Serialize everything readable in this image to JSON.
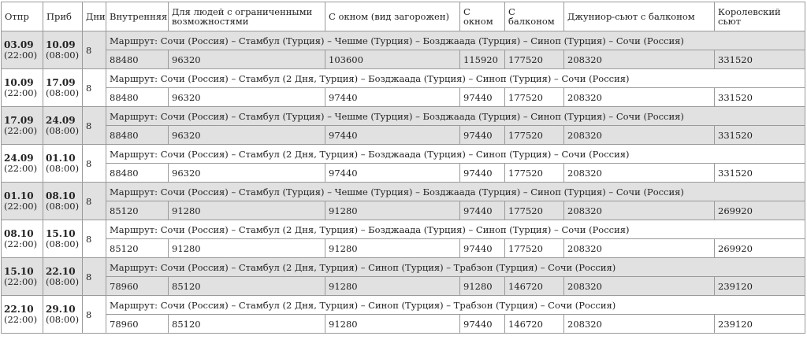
{
  "table": {
    "headers": [
      "Отпр",
      "Приб",
      "Дни",
      "Внутренняя",
      "Для людей с ограниченными возможностями",
      "С окном (вид загорожен)",
      "С окном",
      "С балконом",
      "Джуниор-сьют с балконом",
      "Королевский сьют"
    ],
    "rows": [
      {
        "dep_date": "03.09",
        "dep_time": "(22:00)",
        "arr_date": "10.09",
        "arr_time": "(08:00)",
        "days": "8",
        "route": "Маршрут: Сочи (Россия) – Стамбул (Турция) – Чешме (Турция) – Бозджаада (Турция) – Синоп (Турция) – Сочи (Россия)",
        "prices": [
          "88480",
          "96320",
          "103600",
          "115920",
          "177520",
          "208320",
          "331520"
        ]
      },
      {
        "dep_date": "10.09",
        "dep_time": "(22:00)",
        "arr_date": "17.09",
        "arr_time": "(08:00)",
        "days": "8",
        "route": "Маршрут: Сочи (Россия) – Стамбул (2 Дня, Турция) – Бозджаада (Турция) – Синоп (Турция) – Сочи (Россия)",
        "prices": [
          "88480",
          "96320",
          "97440",
          "97440",
          "177520",
          "208320",
          "331520"
        ]
      },
      {
        "dep_date": "17.09",
        "dep_time": "(22:00)",
        "arr_date": "24.09",
        "arr_time": "(08:00)",
        "days": "8",
        "route": "Маршрут: Сочи (Россия) – Стамбул (Турция) – Чешме (Турция) – Бозджаада (Турция) – Синоп (Турция) – Сочи (Россия)",
        "prices": [
          "88480",
          "96320",
          "97440",
          "97440",
          "177520",
          "208320",
          "331520"
        ]
      },
      {
        "dep_date": "24.09",
        "dep_time": "(22:00)",
        "arr_date": "01.10",
        "arr_time": "(08:00)",
        "days": "8",
        "route": "Маршрут: Сочи (Россия) – Стамбул (2 Дня, Турция) – Бозджаада (Турция) – Синоп (Турция) – Сочи (Россия)",
        "prices": [
          "88480",
          "96320",
          "97440",
          "97440",
          "177520",
          "208320",
          "331520"
        ]
      },
      {
        "dep_date": "01.10",
        "dep_time": "(22:00)",
        "arr_date": "08.10",
        "arr_time": "(08:00)",
        "days": "8",
        "route": "Маршрут: Сочи (Россия) – Стамбул (Турция) – Чешме (Турция) – Бозджаада (Турция) – Синоп (Турция) – Сочи (Россия)",
        "prices": [
          "85120",
          "91280",
          "91280",
          "97440",
          "177520",
          "208320",
          "269920"
        ]
      },
      {
        "dep_date": "08.10",
        "dep_time": "(22:00)",
        "arr_date": "15.10",
        "arr_time": "(08:00)",
        "days": "8",
        "route": "Маршрут: Сочи (Россия) – Стамбул (2 Дня, Турция) – Бозджаада (Турция) – Синоп (Турция) – Сочи (Россия)",
        "prices": [
          "85120",
          "91280",
          "91280",
          "97440",
          "177520",
          "208320",
          "269920"
        ]
      },
      {
        "dep_date": "15.10",
        "dep_time": "(22:00)",
        "arr_date": "22.10",
        "arr_time": "(08:00)",
        "days": "8",
        "route": "Маршрут: Сочи (Россия) – Стамбул (2 Дня, Турция) – Синоп (Турция) – Трабзон (Турция) – Сочи (Россия)",
        "prices": [
          "78960",
          "85120",
          "91280",
          "91280",
          "146720",
          "208320",
          "239120"
        ]
      },
      {
        "dep_date": "22.10",
        "dep_time": "(22:00)",
        "arr_date": "29.10",
        "arr_time": "(08:00)",
        "days": "8",
        "route": "Маршрут: Сочи (Россия) – Стамбул (2 Дня, Турция) – Синоп (Турция) – Трабзон (Турция) – Сочи (Россия)",
        "prices": [
          "78960",
          "85120",
          "91280",
          "97440",
          "146720",
          "208320",
          "239120"
        ]
      }
    ]
  }
}
